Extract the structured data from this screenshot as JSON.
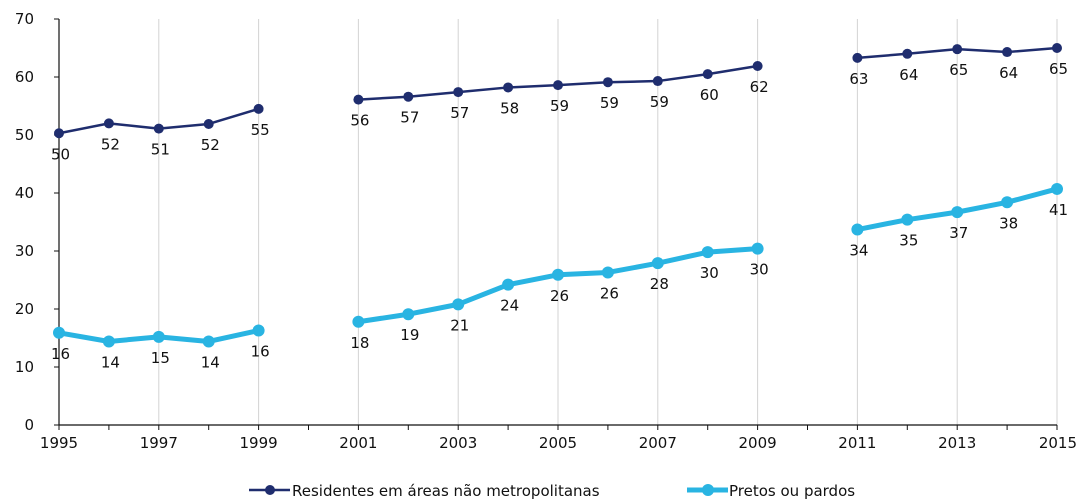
{
  "chart_data": {
    "type": "line",
    "title": "",
    "xlabel": "",
    "ylabel": "",
    "xlim": [
      1995,
      2015
    ],
    "ylim": [
      0,
      70
    ],
    "yticks": [
      0,
      10,
      20,
      30,
      40,
      50,
      60,
      70
    ],
    "xtick_labels": [
      "1995",
      "1997",
      "1999",
      "2001",
      "2003",
      "2005",
      "2007",
      "2009",
      "2011",
      "2013",
      "2015"
    ],
    "grid": "vertical",
    "legend_position": "bottom",
    "x": [
      1995,
      1996,
      1997,
      1998,
      1999,
      2000,
      2001,
      2002,
      2003,
      2004,
      2005,
      2006,
      2007,
      2008,
      2009,
      2010,
      2011,
      2012,
      2013,
      2014,
      2015
    ],
    "series": [
      {
        "name": "Residentes em áreas não metropolitanas",
        "color": "#1f2d6e",
        "values": [
          50.3,
          52.0,
          51.1,
          51.9,
          54.5,
          null,
          56.1,
          56.6,
          57.4,
          58.2,
          58.6,
          59.1,
          59.3,
          60.5,
          61.9,
          null,
          63.3,
          64.0,
          64.8,
          64.3,
          65.0
        ],
        "labels": [
          "50",
          "52",
          "51",
          "52",
          "55",
          "",
          "56",
          "57",
          "57",
          "58",
          "59",
          "59",
          "59",
          "60",
          "62",
          "",
          "63",
          "64",
          "65",
          "64",
          "65"
        ]
      },
      {
        "name": "Pretos ou pardos",
        "color": "#29b4e2",
        "values": [
          15.9,
          14.4,
          15.2,
          14.4,
          16.3,
          null,
          17.8,
          19.1,
          20.8,
          24.2,
          25.9,
          26.3,
          27.9,
          29.8,
          30.4,
          null,
          33.7,
          35.4,
          36.7,
          38.4,
          40.7
        ],
        "labels": [
          "16",
          "14",
          "15",
          "14",
          "16",
          "",
          "18",
          "19",
          "21",
          "24",
          "26",
          "26",
          "28",
          "30",
          "30",
          "",
          "34",
          "35",
          "37",
          "38",
          "41"
        ]
      }
    ]
  }
}
